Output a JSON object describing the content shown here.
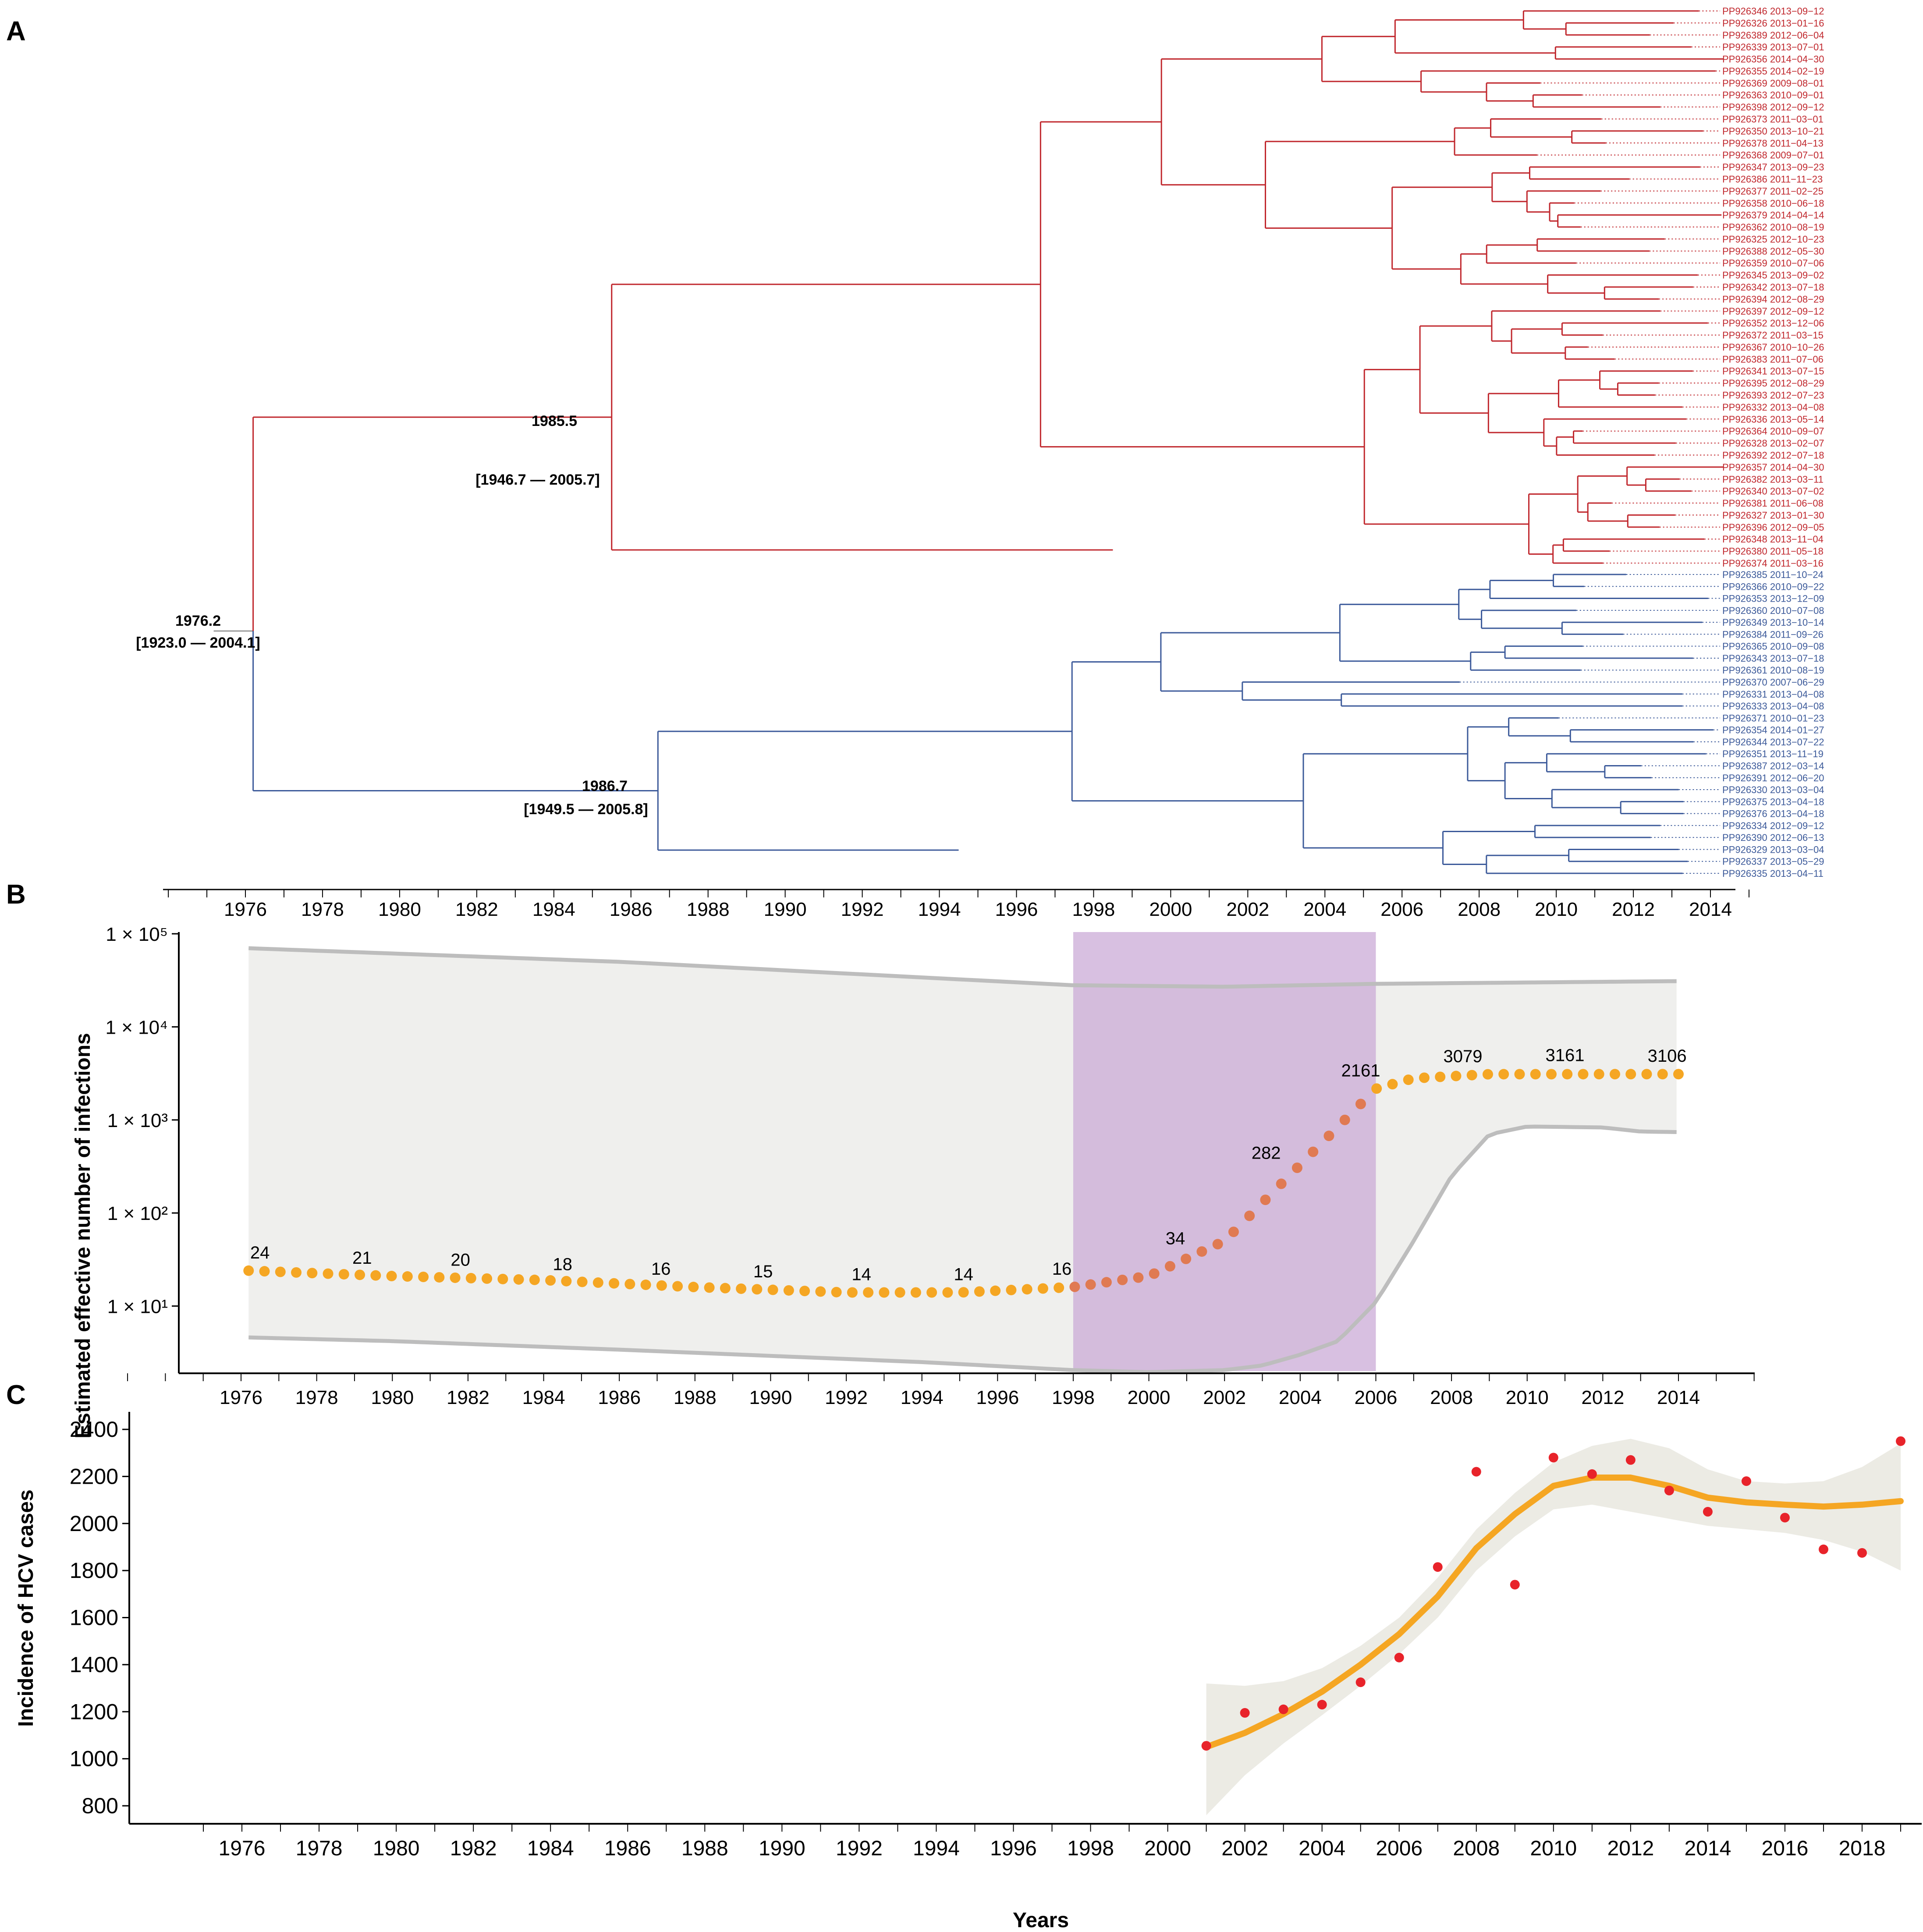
{
  "panels": {
    "a": "A",
    "b": "B",
    "c": "C"
  },
  "colors": {
    "clade_red": "#c0272d",
    "clade_blue": "#3c5a9a",
    "series_orange": "#f5a623",
    "points_orange_dark": "#e07a52",
    "ci_band": "#efefed",
    "ci_line": "#bdbdbd",
    "highlight": "#c9a8d6",
    "obs_red": "#e8232a",
    "smooth_band": "#ecebe4"
  },
  "chart_data": [
    {
      "type": "phylogenetic-tree",
      "title": "",
      "x_ticks": [
        "1976",
        "1978",
        "1980",
        "1982",
        "1984",
        "1986",
        "1988",
        "1990",
        "1992",
        "1994",
        "1996",
        "1998",
        "2000",
        "2002",
        "2004",
        "2006",
        "2008",
        "2010",
        "2012",
        "2014"
      ],
      "xlim": [
        1973.5,
        2015.5
      ],
      "root": {
        "year": 1976.2,
        "label": "1976.2",
        "hpd": "[1923.0 — 2004.1]"
      },
      "nodes": [
        {
          "clade": "red",
          "year": 1985.5,
          "label": "1985.5",
          "hpd": "[1946.7 — 2005.7]"
        },
        {
          "clade": "blue",
          "year": 1986.7,
          "label": "1986.7",
          "hpd": "[1949.5 — 2005.8]"
        }
      ],
      "red_tips": [
        "PP926346 2013−09−12",
        "PP926326 2013−01−16",
        "PP926389 2012−06−04",
        "PP926339 2013−07−01",
        "PP926356 2014−04−30",
        "PP926355 2014−02−19",
        "PP926369 2009−08−01",
        "PP926363 2010−09−01",
        "PP926398 2012−09−12",
        "PP926373 2011−03−01",
        "PP926350 2013−10−21",
        "PP926378 2011−04−13",
        "PP926368 2009−07−01",
        "PP926347 2013−09−23",
        "PP926386 2011−11−23",
        "PP926377 2011−02−25",
        "PP926358 2010−06−18",
        "PP926379 2014−04−14",
        "PP926362 2010−08−19",
        "PP926325 2012−10−23",
        "PP926388 2012−05−30",
        "PP926359 2010−07−06",
        "PP926345 2013−09−02",
        "PP926342 2013−07−18",
        "PP926394 2012−08−29",
        "PP926397 2012−09−12",
        "PP926352 2013−12−06",
        "PP926372 2011−03−15",
        "PP926367 2010−10−26",
        "PP926383 2011−07−06",
        "PP926341 2013−07−15",
        "PP926395 2012−08−29",
        "PP926393 2012−07−23",
        "PP926332 2013−04−08",
        "PP926336 2013−05−14",
        "PP926364 2010−09−07",
        "PP926328 2013−02−07",
        "PP926392 2012−07−18",
        "PP926357 2014−04−30",
        "PP926382 2013−03−11",
        "PP926340 2013−07−02",
        "PP926381 2011−06−08",
        "PP926327 2013−01−30",
        "PP926396 2012−09−05",
        "PP926348 2013−11−04",
        "PP926380 2011−05−18",
        "PP926374 2011−03−16"
      ],
      "blue_tips": [
        "PP926385 2011−10−24",
        "PP926366 2010−09−22",
        "PP926353 2013−12−09",
        "PP926360 2010−07−08",
        "PP926349 2013−10−14",
        "PP926384 2011−09−26",
        "PP926365 2010−09−08",
        "PP926343 2013−07−18",
        "PP926361 2010−08−19",
        "PP926370 2007−06−29",
        "PP926331 2013−04−08",
        "PP926333 2013−04−08",
        "PP926371 2010−01−23",
        "PP926354 2014−01−27",
        "PP926344 2013−07−22",
        "PP926351 2013−11−19",
        "PP926387 2012−03−14",
        "PP926391 2012−06−20",
        "PP926330 2013−03−04",
        "PP926375 2013−04−18",
        "PP926376 2013−04−18",
        "PP926334 2012−09−12",
        "PP926390 2012−06−13",
        "PP926329 2013−03−04",
        "PP926337 2013−05−29",
        "PP926335 2013−04−11"
      ]
    },
    {
      "type": "line",
      "title": "",
      "ylabel": "Estimated effective number of infections",
      "xlabel": "",
      "x_ticks": [
        "1976",
        "1978",
        "1980",
        "1982",
        "1984",
        "1986",
        "1988",
        "1990",
        "1992",
        "1994",
        "1996",
        "1998",
        "2000",
        "2002",
        "2004",
        "2006",
        "2008",
        "2010",
        "2012",
        "2014"
      ],
      "y_ticks": [
        "1 × 10¹",
        "1 × 10²",
        "1 × 10³",
        "1 × 10⁴",
        "1 × 10⁵"
      ],
      "y_scale": "log10",
      "ylim": [
        2,
        100000
      ],
      "xlim": [
        1972.2,
        2016.9
      ],
      "highlight_range": [
        1998,
        2006
      ],
      "median": [
        [
          1976.2,
          24
        ],
        [
          1980,
          21
        ],
        [
          1984,
          19
        ],
        [
          1988,
          16
        ],
        [
          1992,
          14
        ],
        [
          1995,
          14
        ],
        [
          1998,
          16
        ],
        [
          2000,
          21
        ],
        [
          2002,
          50
        ],
        [
          2004,
          330
        ],
        [
          2006,
          2161
        ],
        [
          2007,
          2800
        ],
        [
          2009,
          3100
        ],
        [
          2014,
          3106
        ]
      ],
      "upper": [
        [
          1976.2,
          70000
        ],
        [
          1986,
          50000
        ],
        [
          1998,
          28000
        ],
        [
          2002,
          27000
        ],
        [
          2006,
          29000
        ],
        [
          2014,
          31000
        ]
      ],
      "lower": [
        [
          1976.2,
          4.6
        ],
        [
          1980,
          4.2
        ],
        [
          1986,
          3.4
        ],
        [
          1994,
          2.5
        ],
        [
          1998,
          2.05
        ],
        [
          2000,
          1.95
        ],
        [
          2002,
          2.05
        ],
        [
          2003,
          2.3
        ],
        [
          2004,
          3
        ],
        [
          2005,
          4.2
        ],
        [
          2006,
          11
        ],
        [
          2007,
          50
        ],
        [
          2008,
          250
        ],
        [
          2009,
          700
        ],
        [
          2010,
          850
        ],
        [
          2012,
          830
        ],
        [
          2013,
          750
        ],
        [
          2014,
          740
        ]
      ],
      "labels": [
        {
          "year": 1976.5,
          "value": 24,
          "text": "24"
        },
        {
          "year": 1979.2,
          "value": 21,
          "text": "21"
        },
        {
          "year": 1981.8,
          "value": 20,
          "text": "20"
        },
        {
          "year": 1984.5,
          "value": 18,
          "text": "18"
        },
        {
          "year": 1987.1,
          "value": 16,
          "text": "16"
        },
        {
          "year": 1989.8,
          "value": 15,
          "text": "15"
        },
        {
          "year": 1992.4,
          "value": 14,
          "text": "14"
        },
        {
          "year": 1995.1,
          "value": 14,
          "text": "14"
        },
        {
          "year": 1997.7,
          "value": 16,
          "text": "16"
        },
        {
          "year": 2000.7,
          "value": 34,
          "text": "34"
        },
        {
          "year": 2003.1,
          "value": 282,
          "text": "282"
        },
        {
          "year": 2005.6,
          "value": 2161,
          "text": "2161"
        },
        {
          "year": 2008.3,
          "value": 3079,
          "text": "3079"
        },
        {
          "year": 2011,
          "value": 3161,
          "text": "3161"
        },
        {
          "year": 2013.7,
          "value": 3106,
          "text": "3106"
        }
      ]
    },
    {
      "type": "scatter",
      "title": "",
      "xlabel": "Years",
      "ylabel": "Incidence of HCV cases",
      "x_ticks": [
        "1976",
        "1978",
        "1980",
        "1982",
        "1984",
        "1986",
        "1988",
        "1990",
        "1992",
        "1994",
        "1996",
        "1998",
        "2000",
        "2002",
        "2004",
        "2006",
        "2008",
        "2010",
        "2012",
        "2014",
        "2016",
        "2018"
      ],
      "y_ticks": [
        "800",
        "1000",
        "1200",
        "1400",
        "1600",
        "1800",
        "2000",
        "2200",
        "2400"
      ],
      "ylim": [
        680,
        2430
      ],
      "xlim": [
        1972.6,
        2020.2
      ],
      "points": [
        [
          2001,
          1055
        ],
        [
          2002,
          1195
        ],
        [
          2003,
          1210
        ],
        [
          2004,
          1230
        ],
        [
          2005,
          1325
        ],
        [
          2006,
          1430
        ],
        [
          2007,
          1815
        ],
        [
          2008,
          2220
        ],
        [
          2009,
          1740
        ],
        [
          2010,
          2280
        ],
        [
          2011,
          2210
        ],
        [
          2012,
          2270
        ],
        [
          2013,
          2140
        ],
        [
          2014,
          2050
        ],
        [
          2015,
          2180
        ],
        [
          2016,
          2025
        ],
        [
          2017,
          1890
        ],
        [
          2018,
          1875
        ],
        [
          2019,
          2350
        ]
      ],
      "smooth": [
        [
          2001,
          1050
        ],
        [
          2002,
          1110
        ],
        [
          2003,
          1190
        ],
        [
          2004,
          1285
        ],
        [
          2005,
          1400
        ],
        [
          2006,
          1530
        ],
        [
          2007,
          1690
        ],
        [
          2008,
          1895
        ],
        [
          2009,
          2040
        ],
        [
          2010,
          2160
        ],
        [
          2011,
          2195
        ],
        [
          2012,
          2195
        ],
        [
          2013,
          2160
        ],
        [
          2014,
          2110
        ],
        [
          2015,
          2090
        ],
        [
          2016,
          2080
        ],
        [
          2017,
          2072
        ],
        [
          2018,
          2080
        ],
        [
          2019,
          2095
        ]
      ],
      "band_upper": [
        [
          2001,
          1320
        ],
        [
          2002,
          1310
        ],
        [
          2003,
          1330
        ],
        [
          2004,
          1385
        ],
        [
          2005,
          1480
        ],
        [
          2006,
          1600
        ],
        [
          2007,
          1770
        ],
        [
          2008,
          1975
        ],
        [
          2009,
          2130
        ],
        [
          2010,
          2260
        ],
        [
          2011,
          2330
        ],
        [
          2012,
          2360
        ],
        [
          2013,
          2320
        ],
        [
          2014,
          2230
        ],
        [
          2015,
          2180
        ],
        [
          2016,
          2170
        ],
        [
          2017,
          2180
        ],
        [
          2018,
          2240
        ],
        [
          2019,
          2340
        ]
      ],
      "band_lower": [
        [
          2001,
          760
        ],
        [
          2002,
          930
        ],
        [
          2003,
          1065
        ],
        [
          2004,
          1185
        ],
        [
          2005,
          1310
        ],
        [
          2006,
          1445
        ],
        [
          2007,
          1600
        ],
        [
          2008,
          1800
        ],
        [
          2009,
          1945
        ],
        [
          2010,
          2060
        ],
        [
          2011,
          2080
        ],
        [
          2012,
          2050
        ],
        [
          2013,
          2020
        ],
        [
          2014,
          1990
        ],
        [
          2015,
          1975
        ],
        [
          2016,
          1960
        ],
        [
          2017,
          1930
        ],
        [
          2018,
          1880
        ],
        [
          2019,
          1800
        ]
      ]
    }
  ]
}
